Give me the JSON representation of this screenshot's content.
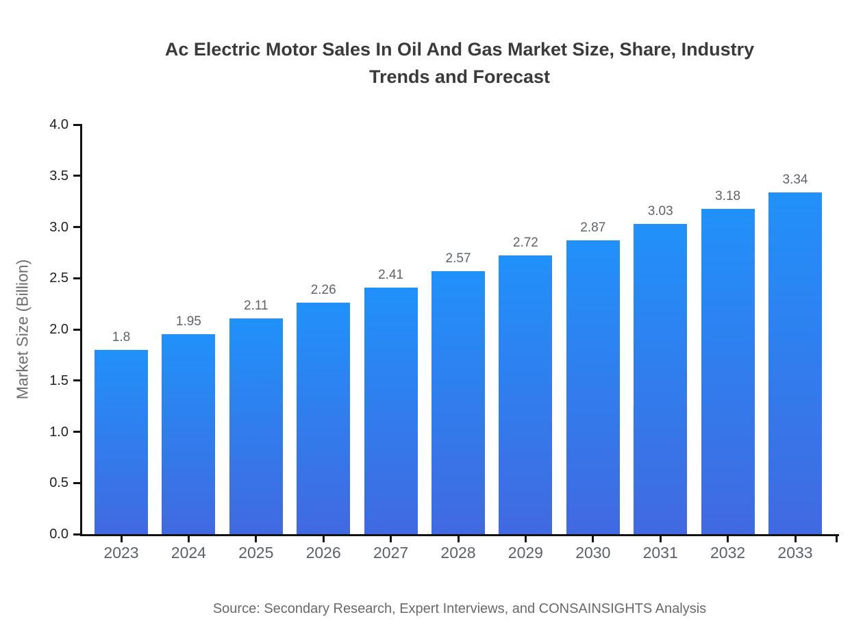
{
  "chart_data": {
    "type": "bar",
    "title": "Ac Electric Motor Sales In Oil And Gas Market Size, Share, Industry Trends and Forecast",
    "categories": [
      "2023",
      "2024",
      "2025",
      "2026",
      "2027",
      "2028",
      "2029",
      "2030",
      "2031",
      "2032",
      "2033"
    ],
    "values": [
      1.8,
      1.95,
      2.11,
      2.26,
      2.41,
      2.57,
      2.72,
      2.87,
      3.03,
      3.18,
      3.34
    ],
    "value_labels": [
      "1.8",
      "1.95",
      "2.11",
      "2.26",
      "2.41",
      "2.57",
      "2.72",
      "2.87",
      "3.03",
      "3.18",
      "3.34"
    ],
    "xlabel": "",
    "ylabel": "Market Size (Billion)",
    "ylim": [
      0.0,
      4.0
    ],
    "ytick_labels": [
      "0.0",
      "0.5",
      "1.0",
      "1.5",
      "2.0",
      "2.5",
      "3.0",
      "3.5",
      "4.0"
    ],
    "grid": false,
    "legend": "none",
    "source": "Source: Secondary Research, Expert Interviews, and CONSAINSIGHTS Analysis"
  },
  "colors": {
    "bar_gradient_top": "#2191fa",
    "bar_gradient_bottom": "#4169e1",
    "axis": "#111111",
    "title_text": "#3a3a3a",
    "ytick_label": "#222222",
    "xtick_label": "#5d6167",
    "value_label": "#5f6368",
    "axis_title": "#6e6e6e",
    "source_text": "#696969",
    "background": "#ffffff"
  }
}
